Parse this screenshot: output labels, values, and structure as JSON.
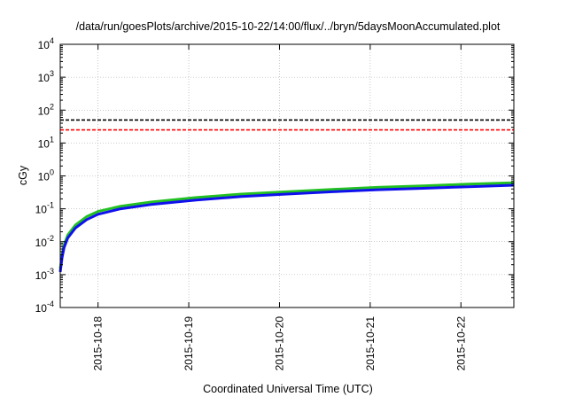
{
  "chart_data": {
    "type": "line",
    "title": "/data/run/goesPlots/archive/2015-10-22/14:00/flux/../bryn/5daysMoonAccumulated.plot",
    "xlabel": "Coordinated Universal Time (UTC)",
    "ylabel": "cGy",
    "x_range": [
      "2015-10-17T14:00",
      "2015-10-22T14:00"
    ],
    "y_scale": "log",
    "ylim": [
      0.0001,
      10000
    ],
    "y_ticks": [
      {
        "value": 0.0001,
        "base": "10",
        "exp": "-4"
      },
      {
        "value": 0.001,
        "base": "10",
        "exp": "-3"
      },
      {
        "value": 0.01,
        "base": "10",
        "exp": "-2"
      },
      {
        "value": 0.1,
        "base": "10",
        "exp": "-1"
      },
      {
        "value": 1,
        "base": "10",
        "exp": "0"
      },
      {
        "value": 10,
        "base": "10",
        "exp": "1"
      },
      {
        "value": 100,
        "base": "10",
        "exp": "2"
      },
      {
        "value": 1000,
        "base": "10",
        "exp": "3"
      },
      {
        "value": 10000,
        "base": "10",
        "exp": "4"
      }
    ],
    "x_ticks": [
      {
        "value": "2015-10-18T00:00",
        "label": "2015-10-18"
      },
      {
        "value": "2015-10-19T00:00",
        "label": "2015-10-19"
      },
      {
        "value": "2015-10-20T00:00",
        "label": "2015-10-20"
      },
      {
        "value": "2015-10-21T00:00",
        "label": "2015-10-21"
      },
      {
        "value": "2015-10-22T00:00",
        "label": "2015-10-22"
      }
    ],
    "grid": true,
    "series": [
      {
        "color": "#22c022",
        "style": "solid",
        "x": [
          "2015-10-17T14:00",
          "2015-10-17T14:30",
          "2015-10-17T15:00",
          "2015-10-17T16:00",
          "2015-10-17T18:00",
          "2015-10-17T21:00",
          "2015-10-18T00:00",
          "2015-10-18T06:00",
          "2015-10-18T14:00",
          "2015-10-19T02:00",
          "2015-10-19T14:00",
          "2015-10-20T02:00",
          "2015-10-20T14:00",
          "2015-10-21T02:00",
          "2015-10-21T14:00",
          "2015-10-22T02:00",
          "2015-10-22T14:00"
        ],
        "y": [
          0.0015,
          0.004,
          0.008,
          0.016,
          0.032,
          0.058,
          0.083,
          0.12,
          0.16,
          0.22,
          0.28,
          0.33,
          0.39,
          0.45,
          0.5,
          0.56,
          0.62
        ]
      },
      {
        "color": "#1010ee",
        "style": "solid",
        "x": [
          "2015-10-17T14:00",
          "2015-10-17T14:30",
          "2015-10-17T15:00",
          "2015-10-17T16:00",
          "2015-10-17T18:00",
          "2015-10-17T21:00",
          "2015-10-18T00:00",
          "2015-10-18T06:00",
          "2015-10-18T14:00",
          "2015-10-19T02:00",
          "2015-10-19T14:00",
          "2015-10-20T02:00",
          "2015-10-20T14:00",
          "2015-10-21T02:00",
          "2015-10-21T14:00",
          "2015-10-22T02:00",
          "2015-10-22T14:00"
        ],
        "y": [
          0.0012,
          0.0033,
          0.0066,
          0.013,
          0.026,
          0.047,
          0.068,
          0.1,
          0.135,
          0.185,
          0.235,
          0.28,
          0.33,
          0.38,
          0.42,
          0.47,
          0.52
        ]
      },
      {
        "color": "#000000",
        "style": "dashed",
        "x": [
          "2015-10-17T14:00",
          "2015-10-22T14:00"
        ],
        "y": [
          50,
          50
        ]
      },
      {
        "color": "#ff0000",
        "style": "dashed",
        "x": [
          "2015-10-17T14:00",
          "2015-10-22T14:00"
        ],
        "y": [
          25,
          25
        ]
      }
    ]
  }
}
